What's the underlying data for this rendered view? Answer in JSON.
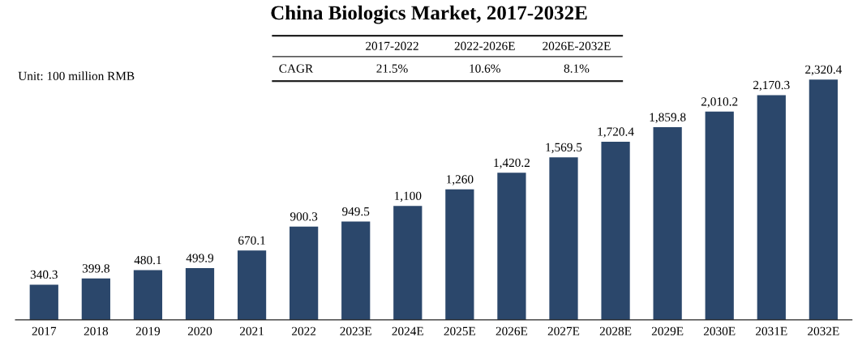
{
  "chart_data": {
    "type": "bar",
    "title": "China Biologics Market, 2017-2032E",
    "categories": [
      "2017",
      "2018",
      "2019",
      "2020",
      "2021",
      "2022",
      "2023E",
      "2024E",
      "2025E",
      "2026E",
      "2027E",
      "2028E",
      "2029E",
      "2030E",
      "2031E",
      "2032E"
    ],
    "values": [
      340.3,
      399.8,
      480.1,
      499.9,
      670.1,
      900.3,
      949.5,
      1100,
      1260,
      1420.2,
      1569.5,
      1720.4,
      1859.8,
      2010.2,
      2170.3,
      2320.4
    ],
    "value_labels": [
      "340.3",
      "399.8",
      "480.1",
      "499.9",
      "670.1",
      "900.3",
      "949.5",
      "1,100",
      "1,260",
      "1,420.2",
      "1,569.5",
      "1,720.4",
      "1,859.8",
      "2,010.2",
      "2,170.3",
      "2,320.4"
    ],
    "color": "#2b476b",
    "annotations": [
      "Unit: 100 million RMB",
      "2017-2022",
      "2022-2026E",
      "2026E-2032E",
      "CAGR",
      "21.5%",
      "10.6%",
      "8.1%"
    ],
    "grid": false,
    "legend": false
  }
}
